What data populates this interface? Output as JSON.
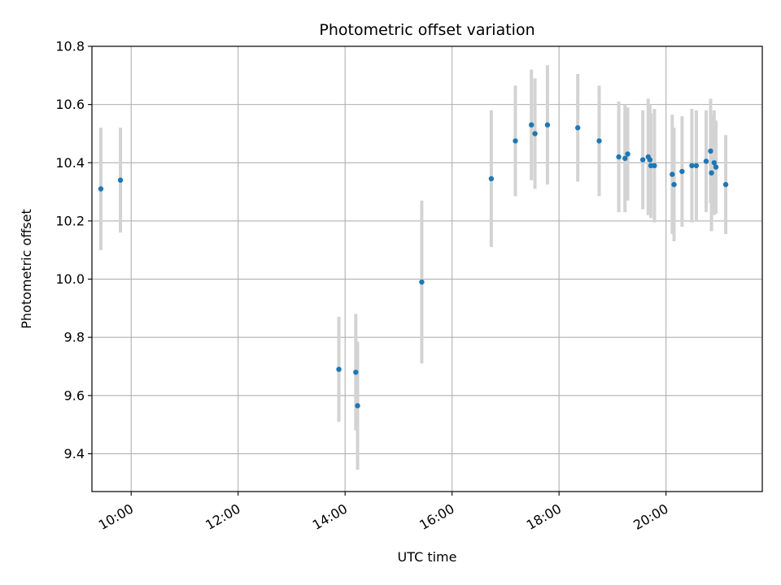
{
  "chart_data": {
    "type": "scatter",
    "title": "Photometric offset variation",
    "xlabel": "UTC time",
    "ylabel": "Photometric offset",
    "x_axis_kind": "time",
    "xlim": [
      "09:16",
      "21:48"
    ],
    "ylim": [
      9.27,
      10.8
    ],
    "grid": true,
    "colors": {
      "point": "#1f77b4",
      "errorbar": "#d3d3d3",
      "grid": "#b0b0b0",
      "axes": "#000000"
    },
    "x_ticks": [
      "10:00",
      "12:00",
      "14:00",
      "16:00",
      "18:00",
      "20:00"
    ],
    "y_ticks": [
      "9.4",
      "9.6",
      "9.8",
      "10.0",
      "10.2",
      "10.4",
      "10.6",
      "10.8"
    ],
    "points": [
      {
        "x": "09:26",
        "y": 10.31,
        "yerr": 0.21
      },
      {
        "x": "09:48",
        "y": 10.34,
        "yerr": 0.18
      },
      {
        "x": "13:53",
        "y": 9.69,
        "yerr": 0.18
      },
      {
        "x": "14:12",
        "y": 9.68,
        "yerr": 0.2
      },
      {
        "x": "14:14",
        "y": 9.565,
        "yerr": 0.22
      },
      {
        "x": "15:26",
        "y": 9.99,
        "yerr": 0.28
      },
      {
        "x": "16:44",
        "y": 10.345,
        "yerr": 0.235
      },
      {
        "x": "17:11",
        "y": 10.475,
        "yerr": 0.19
      },
      {
        "x": "17:29",
        "y": 10.53,
        "yerr": 0.19
      },
      {
        "x": "17:33",
        "y": 10.5,
        "yerr": 0.19
      },
      {
        "x": "17:47",
        "y": 10.53,
        "yerr": 0.205
      },
      {
        "x": "18:21",
        "y": 10.52,
        "yerr": 0.185
      },
      {
        "x": "18:45",
        "y": 10.475,
        "yerr": 0.19
      },
      {
        "x": "19:07",
        "y": 10.42,
        "yerr": 0.19
      },
      {
        "x": "19:14",
        "y": 10.415,
        "yerr": 0.185
      },
      {
        "x": "19:17",
        "y": 10.43,
        "yerr": 0.16
      },
      {
        "x": "19:34",
        "y": 10.41,
        "yerr": 0.17
      },
      {
        "x": "19:40",
        "y": 10.42,
        "yerr": 0.2
      },
      {
        "x": "19:42",
        "y": 10.41,
        "yerr": 0.19
      },
      {
        "x": "19:43",
        "y": 10.39,
        "yerr": 0.18
      },
      {
        "x": "19:47",
        "y": 10.39,
        "yerr": 0.195
      },
      {
        "x": "20:07",
        "y": 10.36,
        "yerr": 0.205
      },
      {
        "x": "20:09",
        "y": 10.325,
        "yerr": 0.195
      },
      {
        "x": "20:18",
        "y": 10.37,
        "yerr": 0.19
      },
      {
        "x": "20:29",
        "y": 10.39,
        "yerr": 0.195
      },
      {
        "x": "20:34",
        "y": 10.39,
        "yerr": 0.19
      },
      {
        "x": "20:45",
        "y": 10.405,
        "yerr": 0.175
      },
      {
        "x": "20:50",
        "y": 10.44,
        "yerr": 0.18
      },
      {
        "x": "20:51",
        "y": 10.365,
        "yerr": 0.2
      },
      {
        "x": "20:54",
        "y": 10.4,
        "yerr": 0.18
      },
      {
        "x": "20:56",
        "y": 10.385,
        "yerr": 0.16
      },
      {
        "x": "21:07",
        "y": 10.325,
        "yerr": 0.17
      }
    ]
  }
}
